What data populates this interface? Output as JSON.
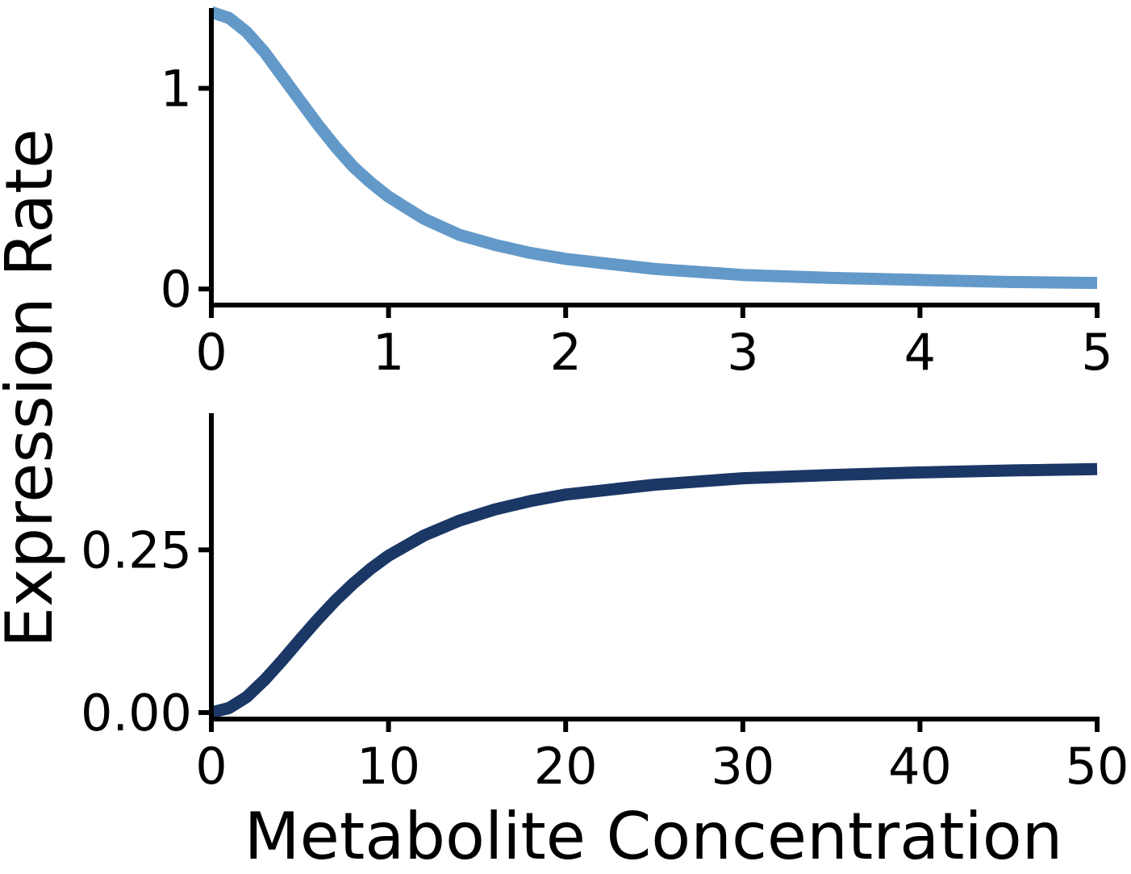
{
  "ylabel": "Expression Rate",
  "xlabel": "Metabolite Concentration",
  "chart_data": [
    {
      "type": "line",
      "panel": "top",
      "xlim": [
        0,
        5
      ],
      "ylim": [
        -0.08,
        1.4
      ],
      "x_ticks": [
        0,
        1,
        2,
        3,
        4,
        5
      ],
      "x_tick_labels": [
        "0",
        "1",
        "2",
        "3",
        "4",
        "5"
      ],
      "y_ticks": [
        0,
        1
      ],
      "y_tick_labels": [
        "0",
        "1"
      ],
      "grid": false,
      "series": [
        {
          "color": "#6399c8",
          "x": [
            0,
            0.1,
            0.2,
            0.3,
            0.4,
            0.5,
            0.6,
            0.7,
            0.8,
            0.9,
            1.0,
            1.2,
            1.4,
            1.6,
            1.8,
            2.0,
            2.5,
            3.0,
            3.5,
            4.0,
            4.5,
            5.0
          ],
          "y": [
            1.38,
            1.35,
            1.28,
            1.18,
            1.06,
            0.94,
            0.82,
            0.71,
            0.61,
            0.53,
            0.46,
            0.35,
            0.27,
            0.22,
            0.18,
            0.15,
            0.1,
            0.07,
            0.055,
            0.045,
            0.035,
            0.03
          ]
        }
      ]
    },
    {
      "type": "line",
      "panel": "bottom",
      "xlim": [
        0,
        50
      ],
      "ylim": [
        -0.01,
        0.46
      ],
      "x_ticks": [
        0,
        10,
        20,
        30,
        40,
        50
      ],
      "x_tick_labels": [
        "0",
        "10",
        "20",
        "30",
        "40",
        "50"
      ],
      "y_ticks": [
        0,
        0.25
      ],
      "y_tick_labels": [
        "0.00",
        "0.25"
      ],
      "grid": false,
      "series": [
        {
          "color": "#1b3766",
          "x": [
            0,
            1,
            2,
            3,
            4,
            5,
            6,
            7,
            8,
            9,
            10,
            12,
            14,
            16,
            18,
            20,
            25,
            30,
            35,
            40,
            45,
            50
          ],
          "y": [
            0.0,
            0.007,
            0.024,
            0.05,
            0.08,
            0.112,
            0.143,
            0.172,
            0.198,
            0.221,
            0.241,
            0.272,
            0.295,
            0.312,
            0.325,
            0.335,
            0.35,
            0.36,
            0.365,
            0.369,
            0.372,
            0.374
          ]
        }
      ]
    }
  ]
}
